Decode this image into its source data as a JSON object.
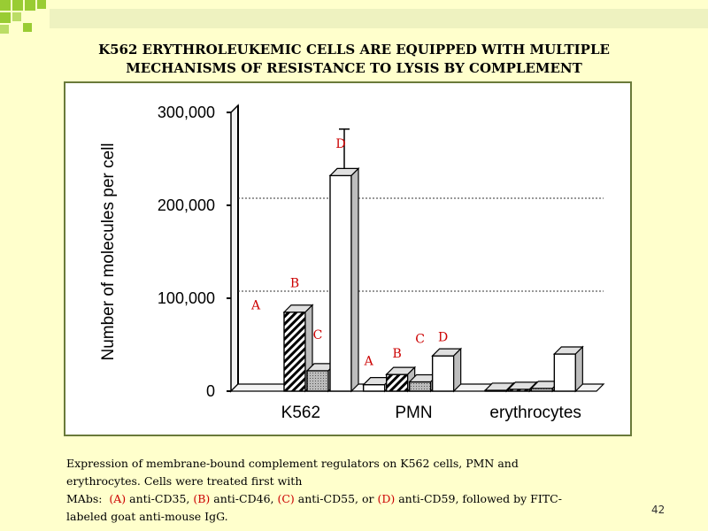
{
  "slide": {
    "title_line1": "K562 ERYTHROLEUKEMIC  CELLS ARE EQUIPPED WITH MULTIPLE",
    "title_line2": "MECHANISMS  OF RESISTANCE  TO LYSIS BY COMPLEMENT",
    "caption": {
      "line1": "Expression of membrane-bound complement regulators on K562 cells, PMN and",
      "line2": "erythrocytes. Cells were treated first with",
      "line3_prefix": "MAbs:  ",
      "a_label": "(A)",
      "a_text": " anti-CD35, ",
      "b_label": "(B)",
      "b_text": " anti-CD46, ",
      "c_label": "(C)",
      "c_text": " anti-CD55, or ",
      "d_label": "(D)",
      "d_text": " anti-CD59, followed by FITC-",
      "line4": "labeled goat anti-mouse IgG."
    },
    "page_number": "42",
    "accent_color": "#cc0000",
    "frame_color": "#6a7a3a"
  },
  "chart_data": {
    "type": "bar",
    "ylabel": "Number of molecules per cell",
    "ylim": [
      0,
      300000
    ],
    "yticks": [
      0,
      100000,
      200000,
      300000
    ],
    "ytick_labels": [
      "0",
      "100,000",
      "200,000",
      "300,000"
    ],
    "grid": "dotted horizontal at 100,000 and 200,000",
    "categories": [
      "K562",
      "PMN",
      "erythrocytes"
    ],
    "series": [
      {
        "name": "A",
        "pattern": "white",
        "values": [
          0,
          7000,
          1000
        ]
      },
      {
        "name": "B",
        "pattern": "diagonal-hatch",
        "values": [
          85000,
          18000,
          2000
        ]
      },
      {
        "name": "C",
        "pattern": "dotted-gray",
        "values": [
          22000,
          10000,
          3000
        ]
      },
      {
        "name": "D",
        "pattern": "white",
        "values": [
          232000,
          38000,
          40000
        ]
      }
    ],
    "error_bars": [
      {
        "category": "K562",
        "series": "D",
        "upper": 282000
      }
    ],
    "annotations": [
      {
        "text": "A",
        "category": "K562",
        "value": 88000
      },
      {
        "text": "B",
        "category": "K562",
        "value": 112000
      },
      {
        "text": "C",
        "category": "K562",
        "value": 56000
      },
      {
        "text": "D",
        "category": "K562",
        "value": 262000
      },
      {
        "text": "A",
        "category": "PMN",
        "value": 28000
      },
      {
        "text": "B",
        "category": "PMN",
        "value": 36000
      },
      {
        "text": "C",
        "category": "PMN",
        "value": 52000
      },
      {
        "text": "D",
        "category": "PMN",
        "value": 54000
      }
    ]
  }
}
